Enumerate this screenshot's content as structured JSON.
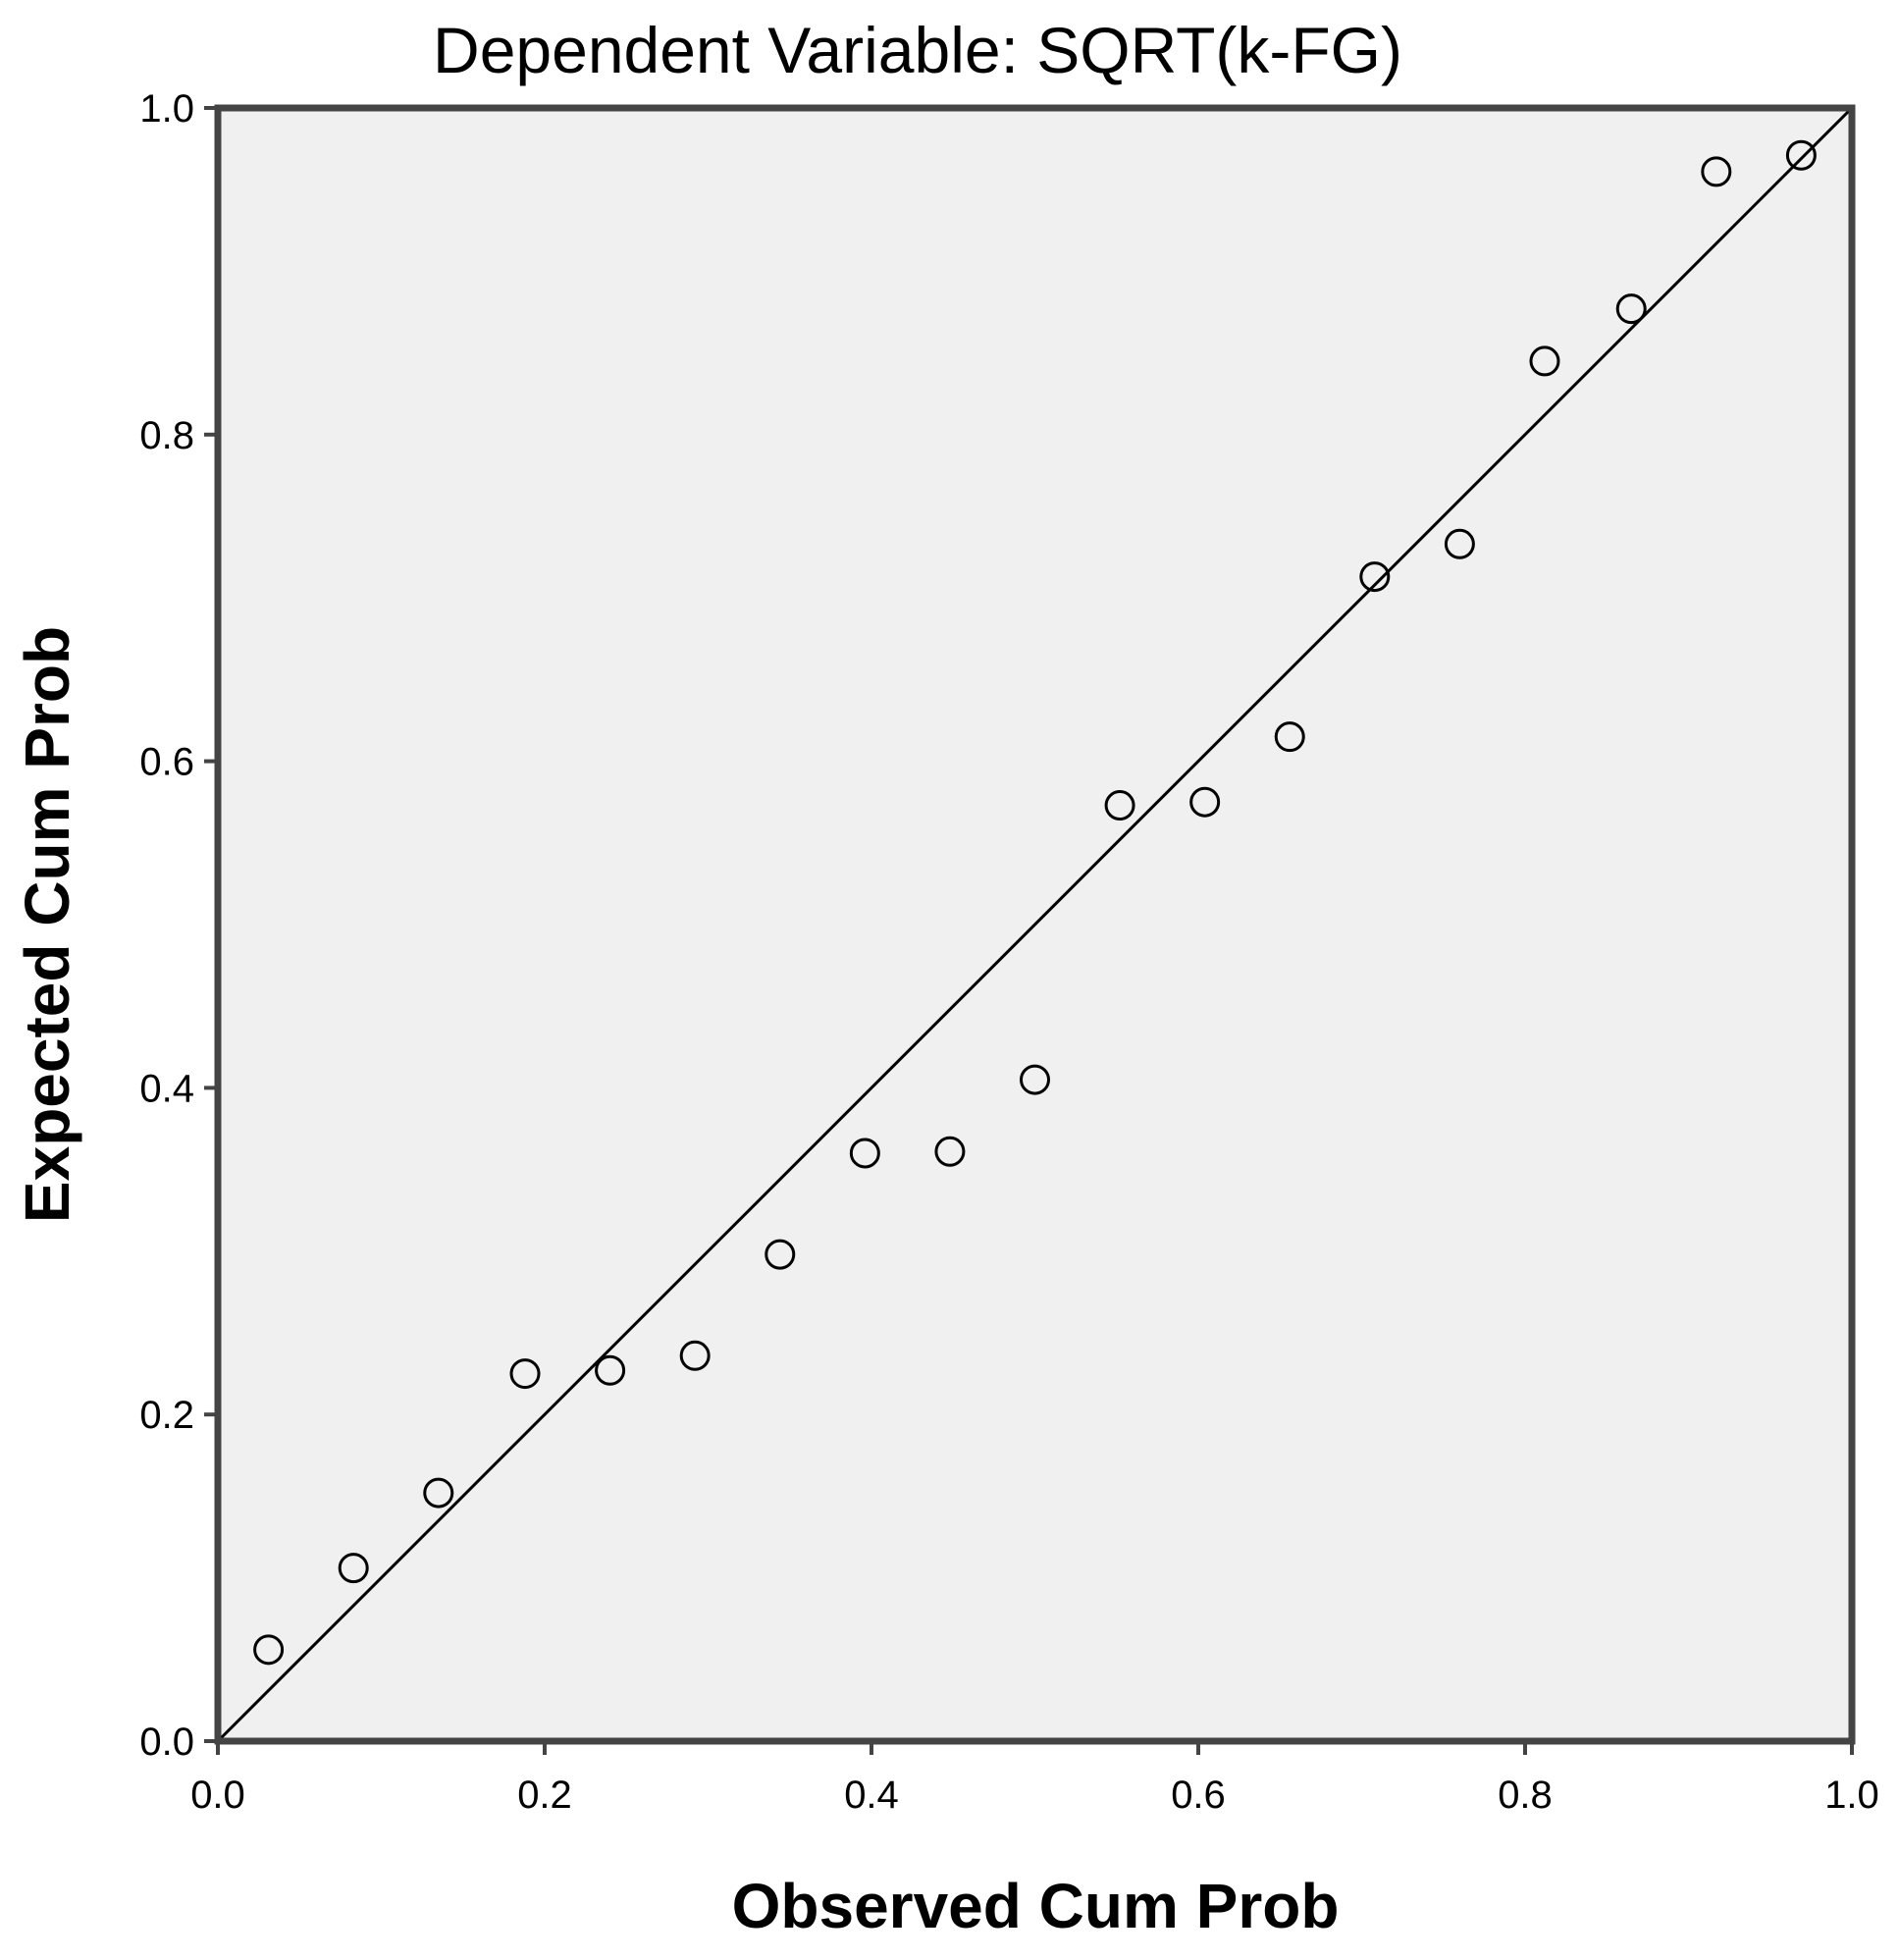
{
  "chart_data": {
    "type": "scatter",
    "title": "Dependent Variable: SQRT(k-FG)",
    "xlabel": "Observed Cum Prob",
    "ylabel": "Expected Cum Prob",
    "xlim": [
      0.0,
      1.0
    ],
    "ylim": [
      0.0,
      1.0
    ],
    "x_ticks": [
      "0.0",
      "0.2",
      "0.4",
      "0.6",
      "0.8",
      "1.0"
    ],
    "y_ticks": [
      "0.0",
      "0.2",
      "0.4",
      "0.6",
      "0.8",
      "1.0"
    ],
    "grid": false,
    "reference_line": {
      "from": [
        0.0,
        0.0
      ],
      "to": [
        1.0,
        1.0
      ]
    },
    "points": [
      {
        "x": 0.031,
        "y": 0.056
      },
      {
        "x": 0.083,
        "y": 0.106
      },
      {
        "x": 0.135,
        "y": 0.152
      },
      {
        "x": 0.188,
        "y": 0.225
      },
      {
        "x": 0.24,
        "y": 0.227
      },
      {
        "x": 0.292,
        "y": 0.236
      },
      {
        "x": 0.344,
        "y": 0.298
      },
      {
        "x": 0.396,
        "y": 0.36
      },
      {
        "x": 0.448,
        "y": 0.361
      },
      {
        "x": 0.5,
        "y": 0.405
      },
      {
        "x": 0.552,
        "y": 0.573
      },
      {
        "x": 0.604,
        "y": 0.575
      },
      {
        "x": 0.656,
        "y": 0.615
      },
      {
        "x": 0.708,
        "y": 0.713
      },
      {
        "x": 0.76,
        "y": 0.733
      },
      {
        "x": 0.812,
        "y": 0.845
      },
      {
        "x": 0.865,
        "y": 0.877
      },
      {
        "x": 0.917,
        "y": 0.961
      },
      {
        "x": 0.969,
        "y": 0.971
      }
    ],
    "colors": {
      "plot_background": "#f0f0f0",
      "marker": "#000000",
      "frame": "#444444"
    }
  }
}
